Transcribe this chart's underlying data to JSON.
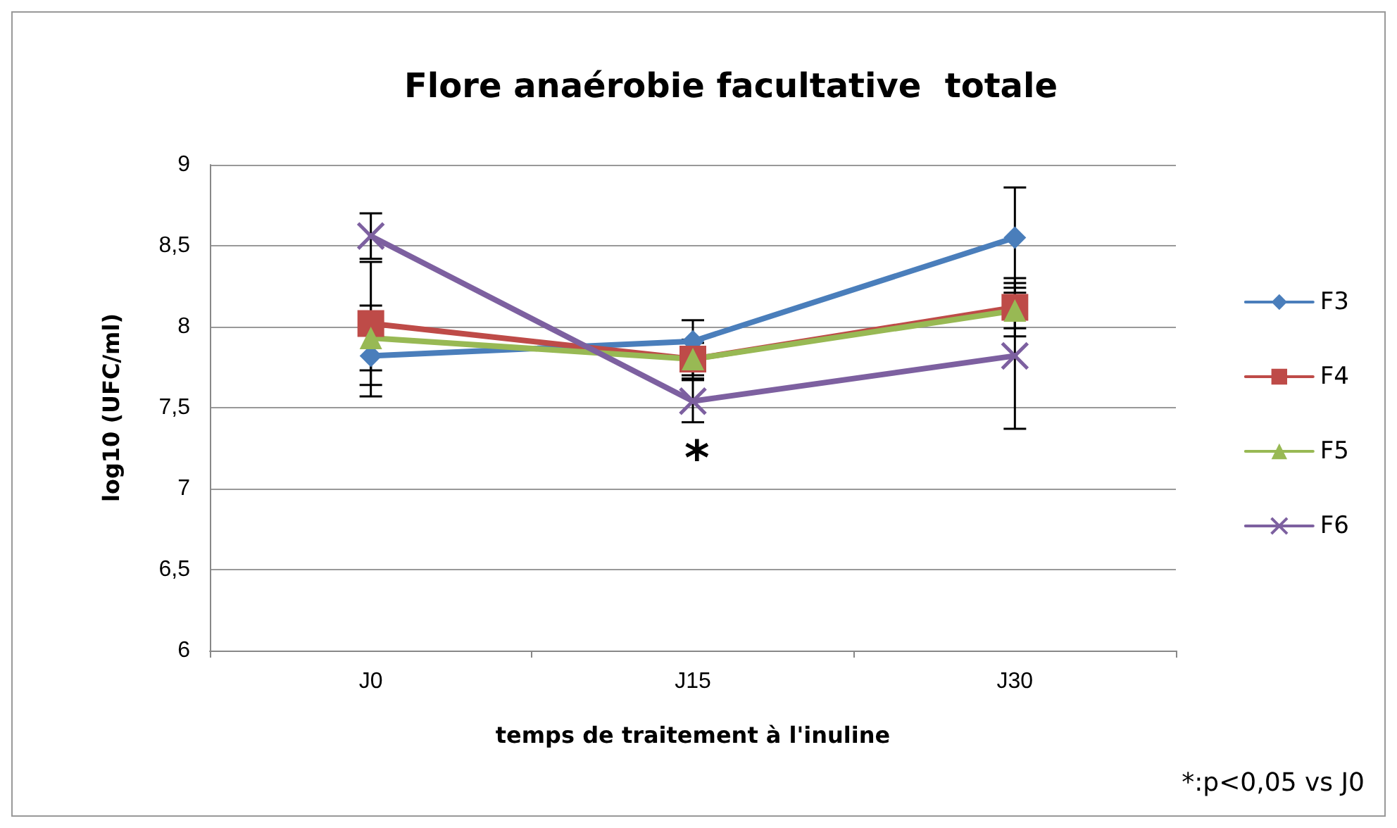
{
  "chart_data": {
    "type": "line",
    "title": "Flore anaérobie facultative  totale",
    "xlabel": "temps de traitement à l'inuline",
    "ylabel": "log10 (UFC/ml)",
    "categories": [
      "J0",
      "J15",
      "J30"
    ],
    "series": [
      {
        "name": "F3",
        "color": "#4a7ebb",
        "marker": "diamond",
        "values": [
          7.82,
          7.91,
          8.55
        ],
        "errors": [
          0.25,
          0.13,
          0.31
        ]
      },
      {
        "name": "F4",
        "color": "#be4b48",
        "marker": "square",
        "values": [
          8.02,
          7.8,
          8.12
        ],
        "errors": [
          0.38,
          0.12,
          0.18
        ]
      },
      {
        "name": "F5",
        "color": "#98b954",
        "marker": "triangle",
        "values": [
          7.93,
          7.8,
          8.1
        ],
        "errors": [
          0.2,
          0.1,
          0.11
        ]
      },
      {
        "name": "F6",
        "color": "#7d60a0",
        "marker": "cross",
        "values": [
          8.56,
          7.54,
          7.82
        ],
        "errors": [
          0.14,
          0.13,
          0.45
        ]
      }
    ],
    "ylim": [
      6,
      9
    ],
    "yticks": [
      6,
      {
        "value": 6.5,
        "label": "6,5"
      },
      7,
      {
        "value": 7.5,
        "label": "7,5"
      },
      8,
      {
        "value": 8.5,
        "label": "8,5"
      },
      9
    ],
    "grid": "y",
    "legend": "right",
    "line_style": "solid",
    "annotations": [
      "*",
      "*:p<0,05 vs J0"
    ]
  }
}
